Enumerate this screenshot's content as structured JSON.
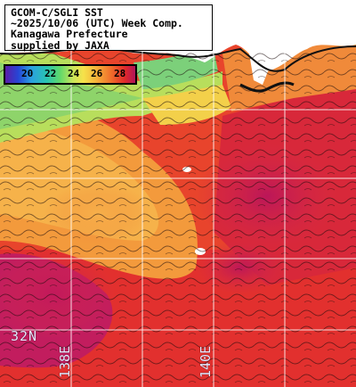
{
  "title_box": {
    "line1": "GCOM-C/SGLI SST",
    "line2": "~2025/10/06 (UTC) Week Comp.",
    "line3": "Kanagawa Prefecture",
    "line4": "supplied by JAXA"
  },
  "legend": {
    "ticks": [
      "20",
      "22",
      "24",
      "26",
      "28"
    ],
    "unit_colors": {
      "20": "#2646d6",
      "22": "#29c4b0",
      "24": "#c9e45a",
      "26": "#f6b23a",
      "28": "#e02a2a"
    }
  },
  "grid_labels": {
    "latitude": "32N",
    "longitude_west": "138E",
    "longitude_east": "140E"
  },
  "colors": {
    "land": "#ffffff",
    "warm_sea": "#e8382a",
    "hot_sea": "#c81f5a",
    "mid_sea": "#f7a444",
    "cool_sea": "#c7e35a",
    "grid": "#ffffff"
  }
}
